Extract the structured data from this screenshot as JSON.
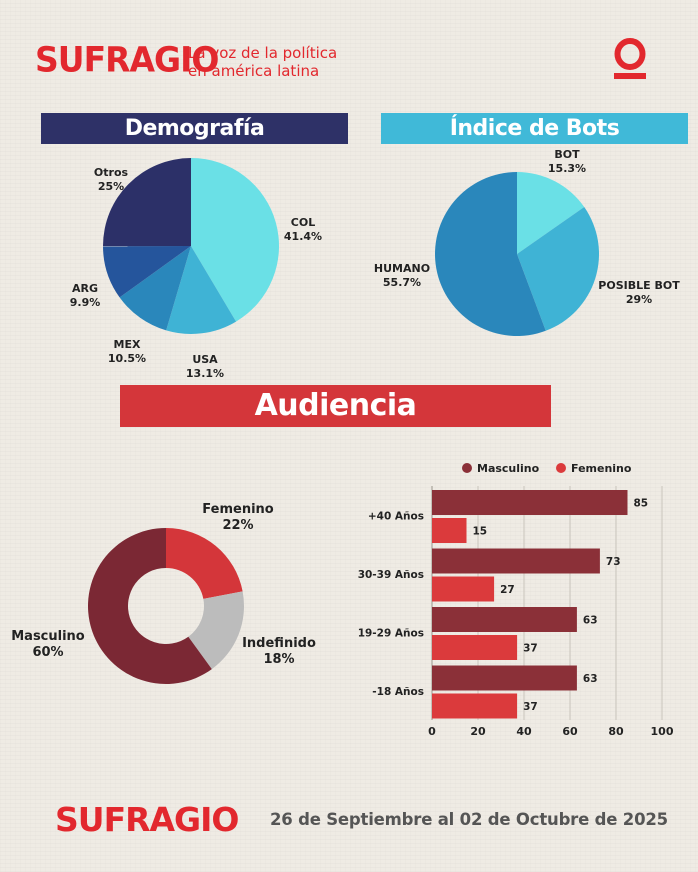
{
  "header": {
    "logo_text": "SUFRAGIO",
    "tagline_line1": "La voz de la política",
    "tagline_line2": "en américa latina",
    "brand_mark_icon": "sufragio-o-mark-icon"
  },
  "sections": {
    "demografia": "Demografía",
    "bots": "Índice de Bots",
    "audiencia": "Audiencia"
  },
  "footer": {
    "logo_text": "SUFRAGIO",
    "date_range": "26 de Septiembre al 02 de Octubre de 2025"
  },
  "chart_data": [
    {
      "type": "pie",
      "labels": [
        "COL",
        "USA",
        "MEX",
        "ARG",
        "Otros"
      ],
      "values": [
        41.4,
        13.1,
        10.5,
        9.9,
        25
      ],
      "value_labels": [
        "41.4%",
        "13.1%",
        "10.5%",
        "9.9%",
        "25%"
      ],
      "colors": [
        "#6ae0e6",
        "#3fb3d5",
        "#2a87bb",
        "#25559c",
        "#2c3068"
      ]
    },
    {
      "type": "pie",
      "labels": [
        "BOT",
        "POSIBLE BOT",
        "HUMANO"
      ],
      "values": [
        15.3,
        29,
        55.7
      ],
      "value_labels": [
        "15.3%",
        "29%",
        "55.7%"
      ],
      "colors": [
        "#6ae0e6",
        "#3fb3d5",
        "#2a87bb"
      ]
    },
    {
      "type": "pie",
      "donut": true,
      "labels": [
        "Femenino",
        "Indefinido",
        "Masculino"
      ],
      "values": [
        22,
        18,
        60
      ],
      "value_labels": [
        "22%",
        "18%",
        "60%"
      ],
      "colors": [
        "#d4363a",
        "#bcbcbc",
        "#7b2834"
      ]
    },
    {
      "type": "bar",
      "orientation": "horizontal",
      "categories": [
        "+40 Años",
        "30-39 Años",
        "19-29 Años",
        "-18 Años"
      ],
      "series": [
        {
          "name": "Masculino",
          "values": [
            85,
            73,
            63,
            63
          ],
          "color": "#8b3038"
        },
        {
          "name": "Femenino",
          "values": [
            15,
            27,
            37,
            37
          ],
          "color": "#db3a3c"
        }
      ],
      "xlim": [
        0,
        100
      ],
      "xticks": [
        "0",
        "20",
        "40",
        "60",
        "80",
        "100"
      ],
      "legend": "top",
      "grid": true
    }
  ]
}
